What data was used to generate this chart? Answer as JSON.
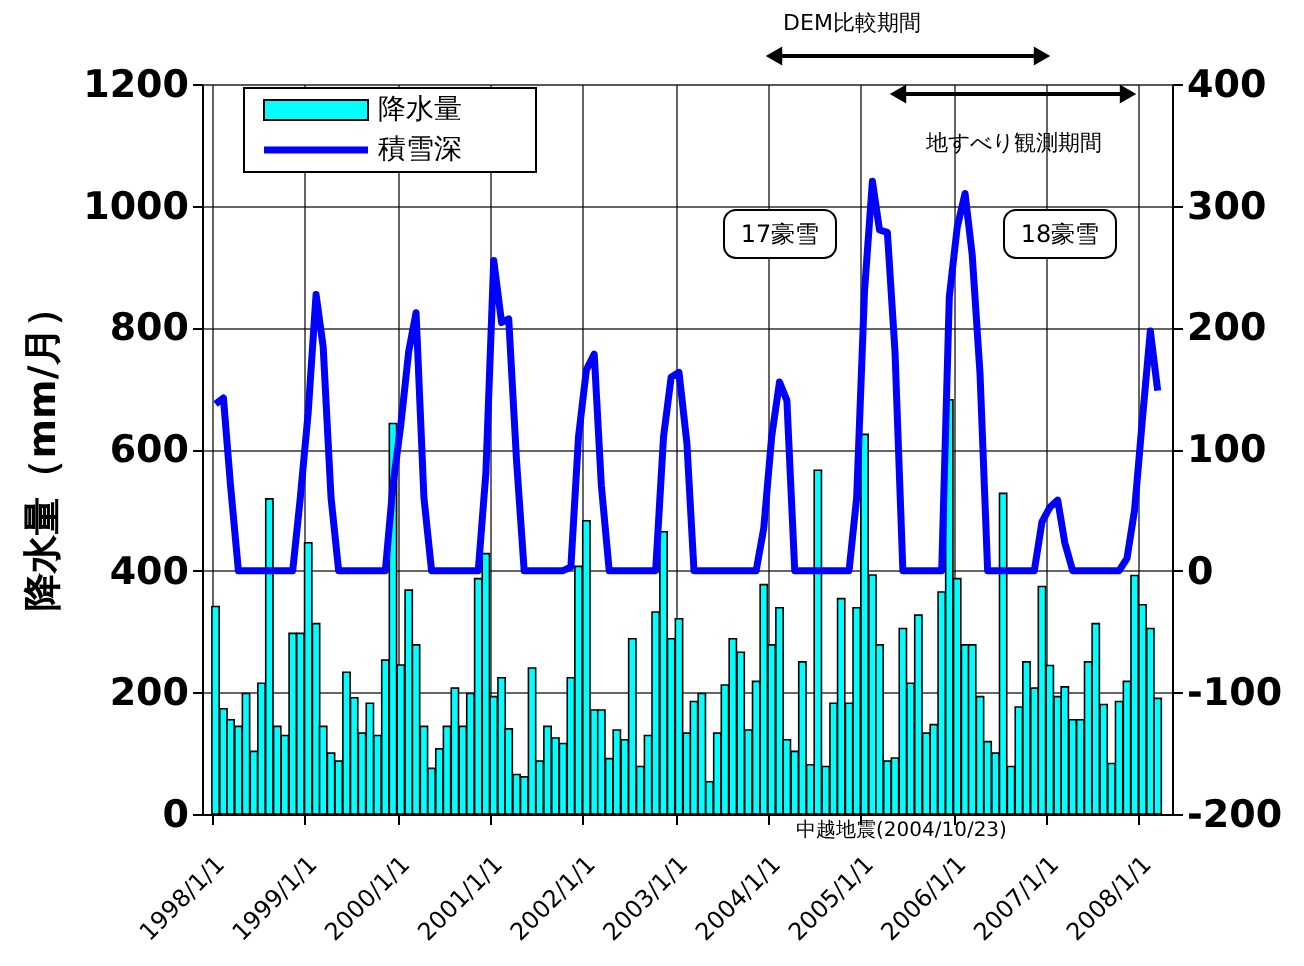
{
  "chart_data": {
    "type": "bar",
    "ylabel": "降水量（mm/月）",
    "x": [
      "1998-01-15",
      "1998-02-15",
      "1998-03-15",
      "1998-04-15",
      "1998-05-15",
      "1998-06-15",
      "1998-07-15",
      "1998-08-15",
      "1998-09-15",
      "1998-10-15",
      "1998-11-15",
      "1998-12-15",
      "1999-01-15",
      "1999-02-15",
      "1999-03-15",
      "1999-04-15",
      "1999-05-15",
      "1999-06-15",
      "1999-07-15",
      "1999-08-15",
      "1999-09-15",
      "1999-10-15",
      "1999-11-15",
      "1999-12-15",
      "2000-01-15",
      "2000-02-15",
      "2000-03-15",
      "2000-04-15",
      "2000-05-15",
      "2000-06-15",
      "2000-07-15",
      "2000-08-15",
      "2000-09-15",
      "2000-10-15",
      "2000-11-15",
      "2000-12-15",
      "2001-01-15",
      "2001-02-15",
      "2001-03-15",
      "2001-04-15",
      "2001-05-15",
      "2001-06-15",
      "2001-07-15",
      "2001-08-15",
      "2001-09-15",
      "2001-10-15",
      "2001-11-15",
      "2001-12-15",
      "2002-01-15",
      "2002-02-15",
      "2002-03-15",
      "2002-04-15",
      "2002-05-15",
      "2002-06-15",
      "2002-07-15",
      "2002-08-15",
      "2002-09-15",
      "2002-10-15",
      "2002-11-15",
      "2002-12-15",
      "2003-01-15",
      "2003-02-15",
      "2003-03-15",
      "2003-04-15",
      "2003-05-15",
      "2003-06-15",
      "2003-07-15",
      "2003-08-15",
      "2003-09-15",
      "2003-10-15",
      "2003-11-15",
      "2003-12-15",
      "2004-01-15",
      "2004-02-15",
      "2004-03-15",
      "2004-04-15",
      "2004-05-15",
      "2004-06-15",
      "2004-07-15",
      "2004-08-15",
      "2004-09-15",
      "2004-10-15",
      "2004-11-15",
      "2004-12-15",
      "2005-01-15",
      "2005-02-15",
      "2005-03-15",
      "2005-04-15",
      "2005-05-15",
      "2005-06-15",
      "2005-07-15",
      "2005-08-15",
      "2005-09-15",
      "2005-10-15",
      "2005-11-15",
      "2005-12-15",
      "2006-01-15",
      "2006-02-15",
      "2006-03-15",
      "2006-04-15",
      "2006-05-15",
      "2006-06-15",
      "2006-07-15",
      "2006-08-15",
      "2006-09-15",
      "2006-10-15",
      "2006-11-15",
      "2006-12-15",
      "2007-01-15",
      "2007-02-15",
      "2007-03-15",
      "2007-04-15",
      "2007-05-15",
      "2007-06-15",
      "2007-07-15",
      "2007-08-15",
      "2007-09-15",
      "2007-10-15",
      "2007-11-15",
      "2007-12-15",
      "2008-01-15",
      "2008-02-15",
      "2008-03-15"
    ],
    "series": [
      {
        "name": "降水量",
        "color": "#00ffff",
        "values": [
          341,
          173,
          155,
          144,
          198,
          103,
          215,
          518,
          144,
          129,
          297,
          297,
          446,
          313,
          144,
          100,
          87,
          233,
          191,
          133,
          182,
          129,
          253,
          642,
          245,
          368,
          278,
          144,
          75,
          107,
          144,
          207,
          144,
          198,
          387,
          428,
          193,
          224,
          140,
          65,
          61,
          240,
          87,
          144,
          125,
          116,
          224,
          407,
          482,
          171,
          171,
          91,
          138,
          122,
          288,
          78,
          129,
          332,
          464,
          288,
          321,
          133,
          185,
          198,
          53,
          133,
          212,
          288,
          266,
          138,
          218,
          377,
          278,
          339,
          122,
          103,
          250,
          81,
          565,
          78,
          182,
          354,
          182,
          339,
          624,
          393,
          278,
          87,
          92,
          305,
          215,
          327,
          133,
          147,
          365,
          681,
          387,
          278,
          278,
          193,
          119,
          100,
          527,
          78,
          176,
          250,
          207,
          374,
          244,
          193,
          209,
          155,
          155,
          250,
          313,
          180,
          83,
          185,
          218,
          392,
          344,
          305,
          190
        ]
      },
      {
        "name": "積雪深",
        "type": "line",
        "axis": "y2",
        "color": "#0000ff",
        "values": [
          137,
          142,
          70,
          0,
          0,
          0,
          0,
          0,
          0,
          0,
          0,
          60,
          130,
          227,
          184,
          60,
          0,
          0,
          0,
          0,
          0,
          0,
          0,
          70,
          120,
          180,
          212,
          60,
          0,
          0,
          0,
          0,
          0,
          0,
          0,
          80,
          255,
          204,
          207,
          90,
          0,
          0,
          0,
          0,
          0,
          0,
          3,
          110,
          165,
          178,
          70,
          0,
          0,
          0,
          0,
          0,
          0,
          0,
          110,
          159,
          163,
          105,
          0,
          0,
          0,
          0,
          0,
          0,
          0,
          0,
          0,
          35,
          110,
          155,
          140,
          0,
          0,
          0,
          0,
          0,
          0,
          0,
          0,
          60,
          230,
          320,
          280,
          278,
          180,
          0,
          0,
          0,
          0,
          0,
          0,
          225,
          282,
          310,
          260,
          162,
          0,
          0,
          0,
          0,
          0,
          0,
          0,
          40,
          52,
          58,
          23,
          0,
          0,
          0,
          0,
          0,
          0,
          0,
          10,
          50,
          125,
          197,
          148
        ]
      }
    ],
    "xlim": [
      "1998-01-01",
      "2008-04-01"
    ],
    "xticks": [
      {
        "value": "1998-01-01",
        "label": "1998/1/1"
      },
      {
        "value": "1999-01-01",
        "label": "1999/1/1"
      },
      {
        "value": "2000-01-01",
        "label": "2000/1/1"
      },
      {
        "value": "2001-01-01",
        "label": "2001/1/1"
      },
      {
        "value": "2002-01-01",
        "label": "2002/1/1"
      },
      {
        "value": "2003-01-01",
        "label": "2003/1/1"
      },
      {
        "value": "2004-01-01",
        "label": "2004/1/1"
      },
      {
        "value": "2005-01-01",
        "label": "2005/1/1"
      },
      {
        "value": "2006-01-01",
        "label": "2006/1/1"
      },
      {
        "value": "2007-01-01",
        "label": "2007/1/1"
      },
      {
        "value": "2008-01-01",
        "label": "2008/1/1"
      }
    ],
    "ylim": [
      0,
      1200
    ],
    "yticks": [
      0,
      200,
      400,
      600,
      800,
      1000,
      1200
    ],
    "y2lim": [
      -200,
      400
    ],
    "y2ticks": [
      -200,
      -100,
      0,
      100,
      200,
      300,
      400
    ],
    "annotations": [
      "DEM比較期間",
      "地すべり観測期間",
      "17豪雪",
      "18豪雪",
      "中越地震(2004/10/23)"
    ],
    "grid": true,
    "legend": "top left"
  }
}
